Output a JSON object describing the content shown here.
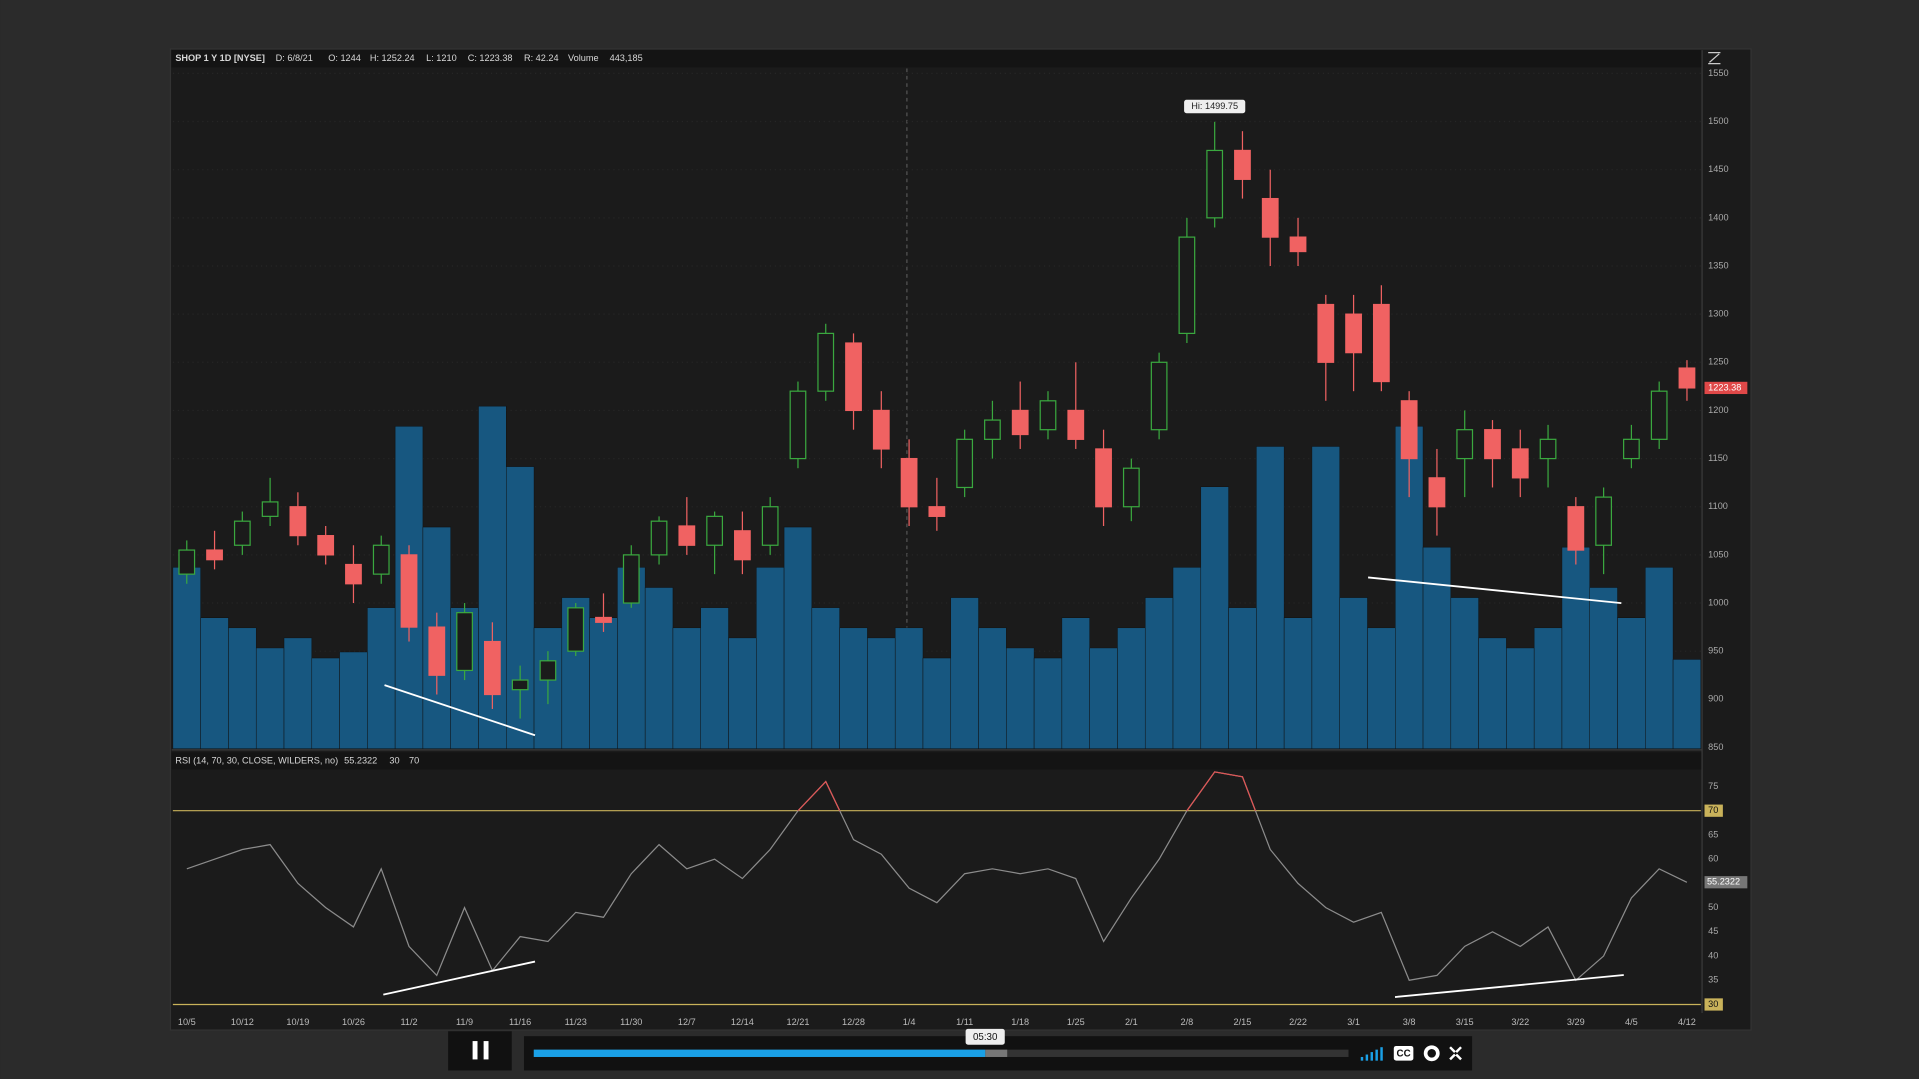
{
  "chart_data": {
    "type": "candlestick",
    "title": "SHOP 1 Y 1D [NYSE]",
    "header": [
      "D: 6/8/21",
      "O: 1244",
      "H: 1252.24",
      "L: 1210",
      "C: 1223.38",
      "R: 42.24"
    ],
    "categories": [
      "10/5",
      null,
      "10/12",
      null,
      "10/19",
      null,
      "10/26",
      null,
      "11/2",
      null,
      "11/9",
      null,
      "11/16",
      null,
      "11/23",
      null,
      "11/30",
      null,
      "12/7",
      null,
      "12/14",
      null,
      "12/21",
      null,
      "12/28",
      null,
      "1/4",
      null,
      "1/11",
      null,
      "1/18",
      null,
      "1/25",
      null,
      "2/1",
      null,
      "2/8",
      null,
      "2/15",
      null,
      "2/22",
      null,
      "3/1",
      null,
      "3/8",
      null,
      "3/15",
      null,
      "3/22",
      null,
      "3/29",
      null,
      "4/5",
      null,
      "4/12"
    ],
    "open": [
      1030,
      1055,
      1060,
      1090,
      1100,
      1070,
      1040,
      1030,
      1050,
      975,
      930,
      960,
      910,
      920,
      950,
      985,
      1000,
      1050,
      1080,
      1060,
      1075,
      1060,
      1150,
      1220,
      1270,
      1200,
      1150,
      1100,
      1120,
      1170,
      1200,
      1180,
      1200,
      1160,
      1100,
      1180,
      1280,
      1400,
      1470,
      1420,
      1380,
      1310,
      1300,
      1310,
      1210,
      1130,
      1150,
      1180,
      1160,
      1150,
      1100,
      1060,
      1150,
      1170,
      1244
    ],
    "high": [
      1065,
      1075,
      1095,
      1130,
      1115,
      1080,
      1060,
      1070,
      1060,
      990,
      1000,
      980,
      935,
      950,
      1000,
      1010,
      1060,
      1090,
      1110,
      1095,
      1095,
      1110,
      1230,
      1290,
      1280,
      1220,
      1170,
      1130,
      1180,
      1210,
      1230,
      1220,
      1250,
      1180,
      1150,
      1260,
      1400,
      1499.75,
      1490,
      1450,
      1400,
      1320,
      1320,
      1330,
      1220,
      1160,
      1200,
      1190,
      1180,
      1185,
      1110,
      1120,
      1185,
      1230,
      1252.24
    ],
    "low": [
      1020,
      1035,
      1050,
      1080,
      1060,
      1040,
      1000,
      1020,
      960,
      905,
      920,
      890,
      880,
      895,
      945,
      970,
      995,
      1040,
      1050,
      1030,
      1030,
      1050,
      1140,
      1210,
      1180,
      1140,
      1080,
      1075,
      1110,
      1150,
      1160,
      1170,
      1160,
      1080,
      1085,
      1170,
      1270,
      1390,
      1420,
      1350,
      1350,
      1210,
      1220,
      1220,
      1110,
      1070,
      1110,
      1120,
      1110,
      1120,
      1040,
      1030,
      1140,
      1160,
      1210
    ],
    "close": [
      1055,
      1045,
      1085,
      1105,
      1070,
      1050,
      1020,
      1060,
      975,
      925,
      990,
      905,
      920,
      940,
      995,
      980,
      1050,
      1085,
      1060,
      1090,
      1045,
      1100,
      1220,
      1280,
      1200,
      1160,
      1100,
      1090,
      1170,
      1190,
      1175,
      1210,
      1170,
      1100,
      1140,
      1250,
      1380,
      1470,
      1440,
      1380,
      1365,
      1250,
      1260,
      1230,
      1150,
      1100,
      1180,
      1150,
      1130,
      1170,
      1055,
      1110,
      1170,
      1220,
      1223.38
    ],
    "up_color": "#3aa83f",
    "down_color": "#f06262",
    "ylim": [
      850,
      1550
    ],
    "yticks": [
      850,
      900,
      950,
      1000,
      1050,
      1100,
      1150,
      1200,
      1250,
      1300,
      1350,
      1400,
      1450,
      1500,
      1550
    ],
    "hi_label": "Hi: 1499.75",
    "last_price_label": "1223.38",
    "volume": {
      "name": "Volume",
      "value_label": "443,185",
      "color": "#175780",
      "values": [
        900000,
        650000,
        600000,
        500000,
        550000,
        450000,
        480000,
        700000,
        1600000,
        1100000,
        700000,
        1700000,
        1400000,
        600000,
        750000,
        650000,
        900000,
        800000,
        600000,
        700000,
        550000,
        900000,
        1100000,
        700000,
        600000,
        550000,
        600000,
        450000,
        750000,
        600000,
        500000,
        450000,
        650000,
        500000,
        600000,
        750000,
        900000,
        1300000,
        700000,
        1500000,
        650000,
        1500000,
        750000,
        600000,
        1600000,
        1000000,
        750000,
        550000,
        500000,
        600000,
        1000000,
        800000,
        650000,
        900000,
        443185
      ]
    },
    "rsi": {
      "title": "RSI (14, 70, 30, CLOSE, WILDERS, no)",
      "current_label": "55.2322",
      "levels": [
        30,
        70
      ],
      "color": "#8c8c8c",
      "overbought_color": "#e05555",
      "level_color": "#c9b25a",
      "ylim": [
        28,
        78
      ],
      "yticks": [
        30,
        35,
        40,
        45,
        50,
        55,
        60,
        65,
        70,
        75
      ],
      "values": [
        58,
        60,
        62,
        63,
        55,
        50,
        46,
        58,
        42,
        36,
        50,
        37,
        44,
        43,
        49,
        48,
        57,
        63,
        58,
        60,
        56,
        62,
        70,
        76,
        64,
        61,
        54,
        51,
        57,
        58,
        57,
        58,
        56,
        43,
        52,
        60,
        70,
        78,
        77,
        62,
        55,
        50,
        47,
        49,
        35,
        36,
        42,
        45,
        42,
        46,
        35,
        40,
        52,
        58,
        55.2322
      ]
    },
    "player": {
      "time": "05:30",
      "cc": "CC"
    }
  }
}
